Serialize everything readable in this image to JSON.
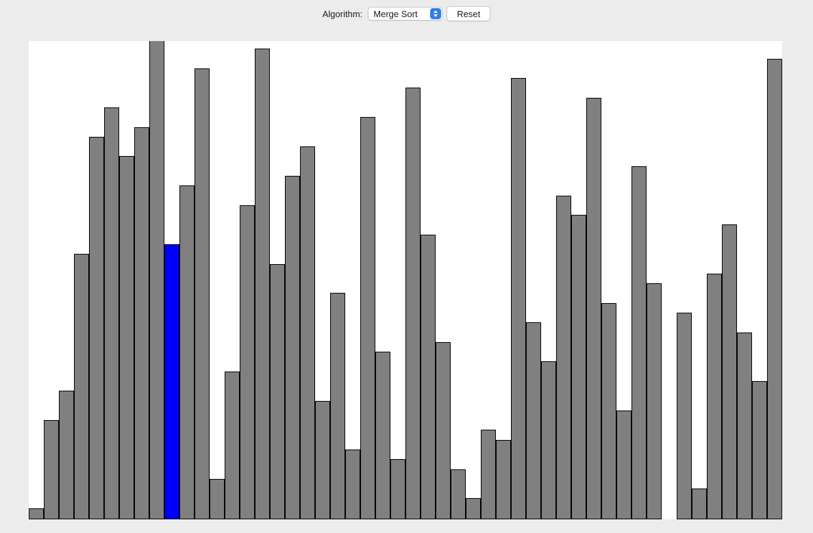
{
  "toolbar": {
    "algorithm_label": "Algorithm:",
    "algorithm_selected": "Merge Sort",
    "reset_label": "Reset"
  },
  "colors": {
    "bar_default": "#808080",
    "bar_active": "#0000ff",
    "bar_stroke": "#000000",
    "canvas_bg": "#ffffff",
    "window_bg": "#ececec",
    "select_stepper": "#2b7de9"
  },
  "chart_data": {
    "type": "bar",
    "values": [
      15,
      144,
      187,
      387,
      558,
      601,
      530,
      572,
      699,
      401,
      487,
      658,
      58,
      215,
      458,
      687,
      372,
      501,
      544,
      172,
      330,
      101,
      587,
      244,
      87,
      630,
      415,
      258,
      72,
      30,
      130,
      115,
      644,
      287,
      230,
      472,
      444,
      615,
      315,
      158,
      515,
      344,
      0,
      301,
      44,
      358,
      430,
      272,
      201,
      672
    ],
    "active_index": 9,
    "ylim": [
      0,
      699
    ]
  }
}
